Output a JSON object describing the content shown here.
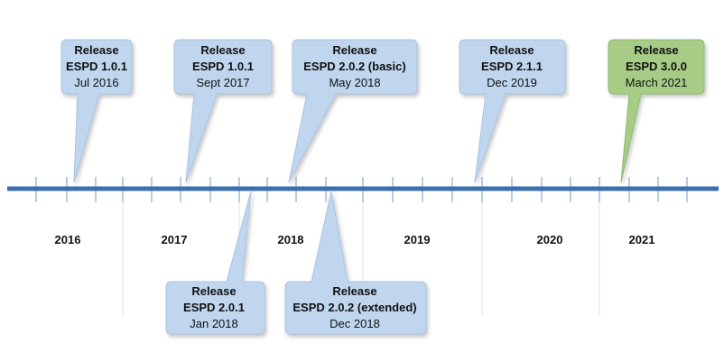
{
  "timeline": {
    "years": [
      "2016",
      "2017",
      "2018",
      "2019",
      "2020",
      "2021"
    ],
    "colors": {
      "axis": "#3a6fb0",
      "tick": "#8aa9cf",
      "divider": "#dde3ea",
      "callout_fill": "#bfd6ee",
      "callout_stroke": "#a9c4e2",
      "highlight_fill": "#a6cc86",
      "highlight_stroke": "#8fbb6c"
    }
  },
  "releases": [
    {
      "id": "r1",
      "line1": "Release",
      "line2": "ESPD 1.0.1",
      "line3": "Jul 2016"
    },
    {
      "id": "r2",
      "line1": "Release",
      "line2": "ESPD 1.0.1",
      "line3": "Sept 2017"
    },
    {
      "id": "r3",
      "line1": "Release",
      "line2": "ESPD 2.0.2 (basic)",
      "line3": "May 2018"
    },
    {
      "id": "r4",
      "line1": "Release",
      "line2": "ESPD 2.1.1",
      "line3": "Dec 2019"
    },
    {
      "id": "r5",
      "line1": "Release",
      "line2": "ESPD 3.0.0",
      "line3": "March 2021"
    },
    {
      "id": "r6",
      "line1": "Release",
      "line2": "ESPD 2.0.1",
      "line3": "Jan 2018"
    },
    {
      "id": "r7",
      "line1": "Release",
      "line2": "ESPD 2.0.2 (extended)",
      "line3": "Dec 2018"
    }
  ]
}
